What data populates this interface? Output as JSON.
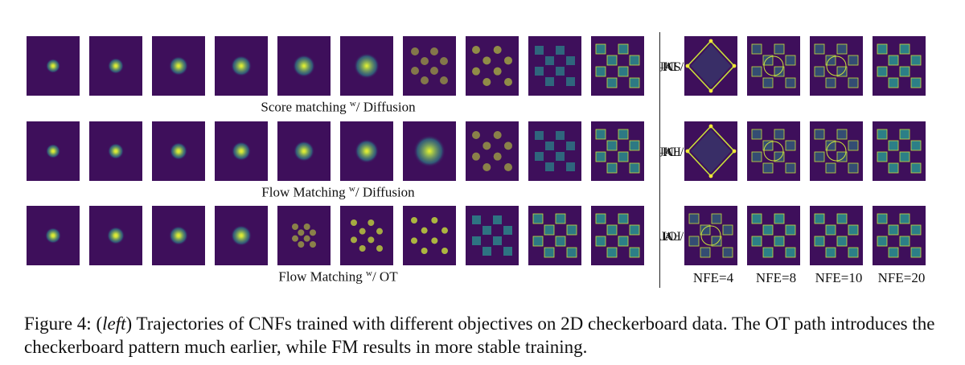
{
  "rows": [
    {
      "label": "Score matching",
      "sup": "w",
      "suffix": "/ Diffusion"
    },
    {
      "label": "Flow Matching",
      "sup": "w",
      "suffix": "/ Diffusion"
    },
    {
      "label": "Flow Matching",
      "sup": "w",
      "suffix": "/ OT"
    }
  ],
  "right_rows": [
    {
      "label": "SM",
      "sup": "w",
      "suffix": "/ Dif"
    },
    {
      "label": "FM",
      "sup": "w",
      "suffix": "/ Dif"
    },
    {
      "label": "FM",
      "sup": "w",
      "suffix": "/ OT"
    }
  ],
  "nfe_labels": [
    "NFE=4",
    "NFE=8",
    "NFE=10",
    "NFE=20"
  ],
  "caption": {
    "prefix": "Figure 4: (",
    "italic": "left",
    "text": ") Trajectories of CNFs trained with different objectives on 2D checkerboard data. The OT path introduces the checkerboard pattern much earlier, while FM results in more stable training."
  },
  "colors": {
    "background": "#3e0f5b",
    "mid": "#2a8c8c",
    "bright": "#c8e03a",
    "yellow": "#f0e838"
  }
}
